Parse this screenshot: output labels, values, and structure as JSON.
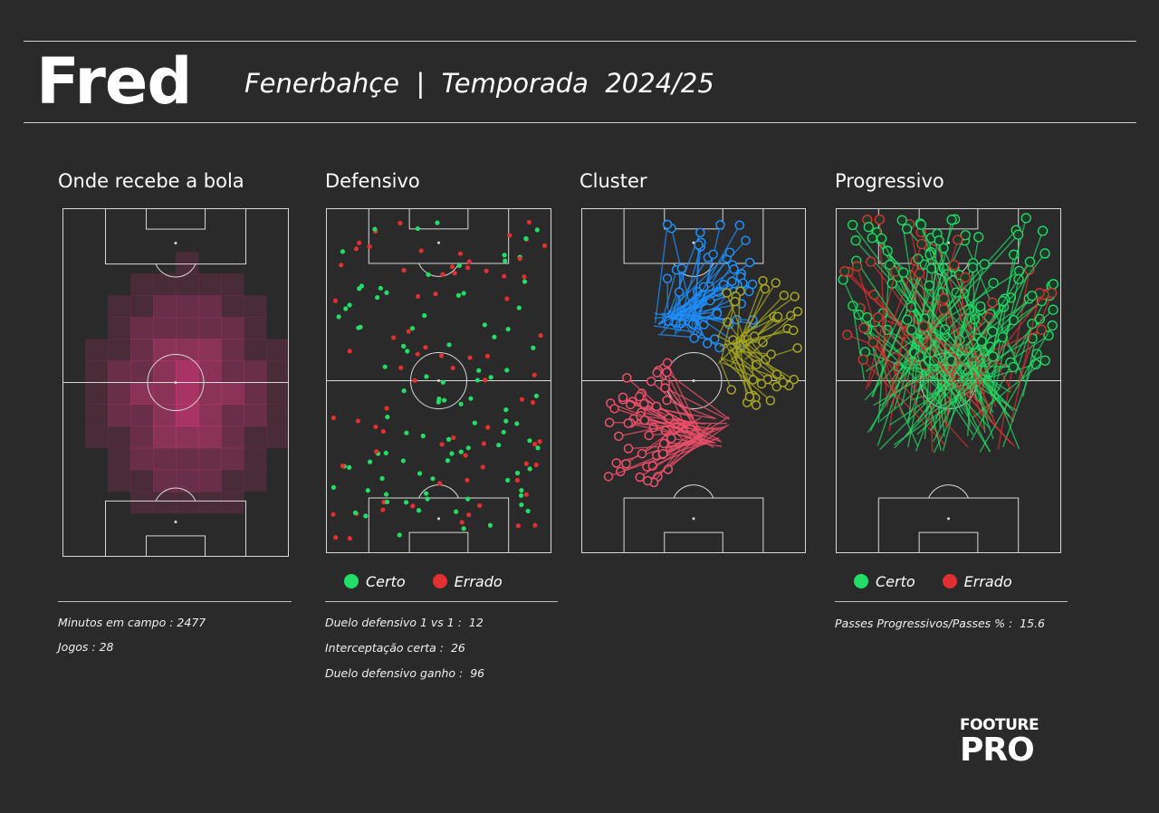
{
  "header": {
    "player_name": "Fred",
    "subtitle": "Fenerbahçe  |  Temporada  2024/25"
  },
  "panels": {
    "heatmap": {
      "title": "Onde recebe a bola"
    },
    "defensive": {
      "title": "Defensivo"
    },
    "cluster": {
      "title": "Cluster"
    },
    "progressive": {
      "title": "Progressivo"
    }
  },
  "legend": {
    "success_label": "Certo",
    "fail_label": "Errado",
    "success_color": "#22dd66",
    "fail_color": "#e03030"
  },
  "stats": {
    "heatmap": [
      "Minutos em campo : 2477",
      "Jogos : 28"
    ],
    "defensive": [
      "Duelo defensivo 1 vs 1 :  12",
      "Interceptação certa :  26",
      "Duelo defensivo ganho :  96"
    ],
    "progressive": [
      "Passes Progressivos/Passes % :  15.6"
    ]
  },
  "logo": {
    "line1": "FOOTURE",
    "line2": "PRO"
  },
  "colors": {
    "background": "#2a2a2a",
    "heat": "#ff3b8d",
    "cluster_blue": "#1e90ff",
    "cluster_olive": "#a8a820",
    "cluster_red": "#f0506a"
  }
}
